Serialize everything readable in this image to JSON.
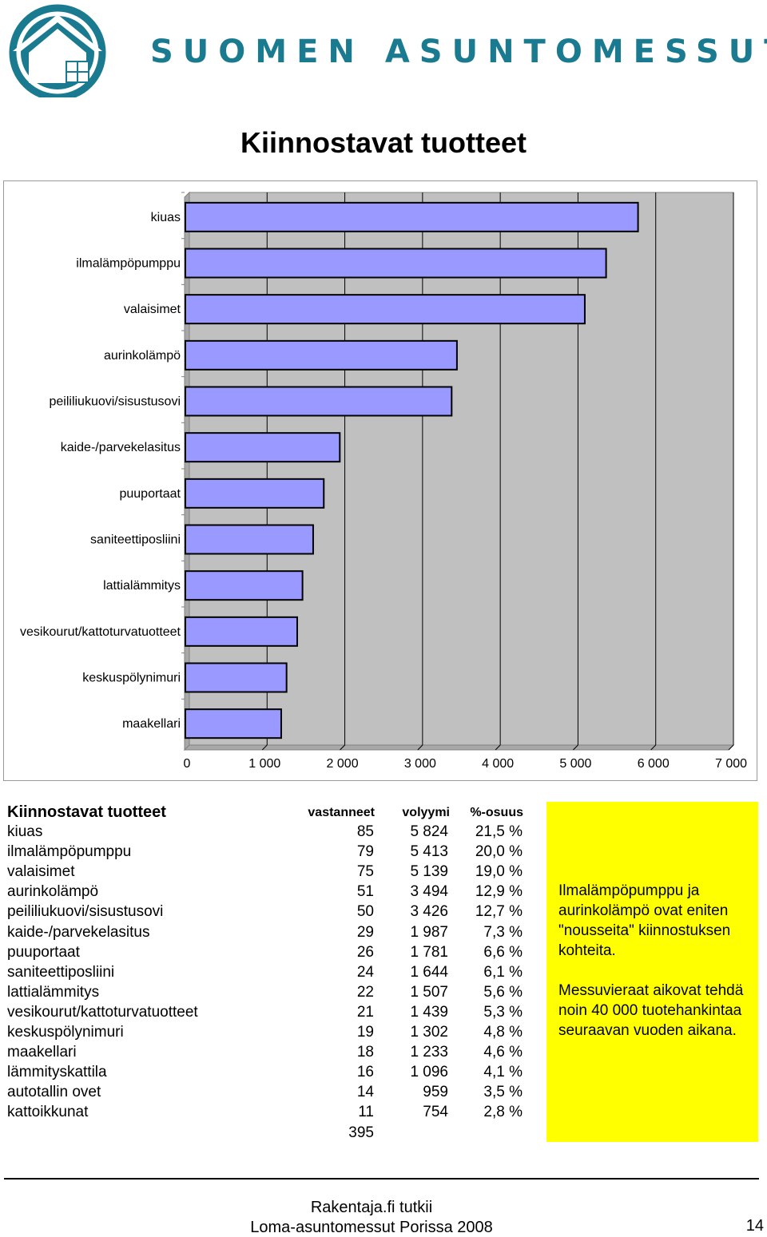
{
  "brand": {
    "name": "SUOMEN ASUNTOMESSUT"
  },
  "page_title": "Kiinnostavat tuotteet",
  "colors": {
    "bar": "#9999ff",
    "plot_bg": "#c0c0c0",
    "brand": "#1a7a90",
    "note_bg": "#ffff00"
  },
  "chart_data": {
    "type": "bar",
    "orientation": "horizontal",
    "categories": [
      "kiuas",
      "ilmalämpöpumppu",
      "valaisimet",
      "aurinkolämpö",
      "peililiukuovi/sisustusovi",
      "kaide-/parvekelasitus",
      "puuportaat",
      "saniteettiposliini",
      "lattialämmitys",
      "vesikourut/kattoturvatuotteet",
      "keskuspölynimuri",
      "maakellari"
    ],
    "values": [
      5824,
      5413,
      5139,
      3494,
      3426,
      1987,
      1781,
      1644,
      1507,
      1439,
      1302,
      1233
    ],
    "xlim": [
      0,
      7000
    ],
    "xticks": [
      "0",
      "1 000",
      "2 000",
      "3 000",
      "4 000",
      "5 000",
      "6 000",
      "7 000"
    ],
    "xtick_values": [
      0,
      1000,
      2000,
      3000,
      4000,
      5000,
      6000,
      7000
    ],
    "grid": true,
    "title": "",
    "xlabel": "",
    "ylabel": ""
  },
  "table": {
    "title": "Kiinnostavat tuotteet",
    "headers": {
      "respondents": "vastanneet",
      "volume": "volyymi",
      "share": "%-osuus"
    },
    "rows": [
      {
        "name": "kiuas",
        "respondents": "85",
        "volume": "5 824",
        "share": "21,5 %"
      },
      {
        "name": "ilmalämpöpumppu",
        "respondents": "79",
        "volume": "5 413",
        "share": "20,0 %"
      },
      {
        "name": "valaisimet",
        "respondents": "75",
        "volume": "5 139",
        "share": "19,0 %"
      },
      {
        "name": "aurinkolämpö",
        "respondents": "51",
        "volume": "3 494",
        "share": "12,9 %"
      },
      {
        "name": "peililiukuovi/sisustusovi",
        "respondents": "50",
        "volume": "3 426",
        "share": "12,7 %"
      },
      {
        "name": "kaide-/parvekelasitus",
        "respondents": "29",
        "volume": "1 987",
        "share": "7,3 %"
      },
      {
        "name": "puuportaat",
        "respondents": "26",
        "volume": "1 781",
        "share": "6,6 %"
      },
      {
        "name": "saniteettiposliini",
        "respondents": "24",
        "volume": "1 644",
        "share": "6,1 %"
      },
      {
        "name": "lattialämmitys",
        "respondents": "22",
        "volume": "1 507",
        "share": "5,6 %"
      },
      {
        "name": "vesikourut/kattoturvatuotteet",
        "respondents": "21",
        "volume": "1 439",
        "share": "5,3 %"
      },
      {
        "name": "keskuspölynimuri",
        "respondents": "19",
        "volume": "1 302",
        "share": "4,8 %"
      },
      {
        "name": "maakellari",
        "respondents": "18",
        "volume": "1 233",
        "share": "4,6 %"
      },
      {
        "name": "lämmityskattila",
        "respondents": "16",
        "volume": "1 096",
        "share": "4,1 %"
      },
      {
        "name": "autotallin ovet",
        "respondents": "14",
        "volume": "959",
        "share": "3,5 %"
      },
      {
        "name": "kattoikkunat",
        "respondents": "11",
        "volume": "754",
        "share": "2,8 %"
      }
    ],
    "total_respondents": "395"
  },
  "note": {
    "paragraph1": "Ilmalämpöpumppu ja aurinkolämpö ovat eniten \"nousseita\" kiinnostuksen kohteita.",
    "paragraph2": "Messuvieraat aikovat tehdä noin 40 000 tuotehankintaa seuraavan vuoden aikana."
  },
  "footer": {
    "line1": "Rakentaja.fi tutkii",
    "line2": "Loma-asuntomessut Porissa 2008",
    "page_number": "14"
  }
}
